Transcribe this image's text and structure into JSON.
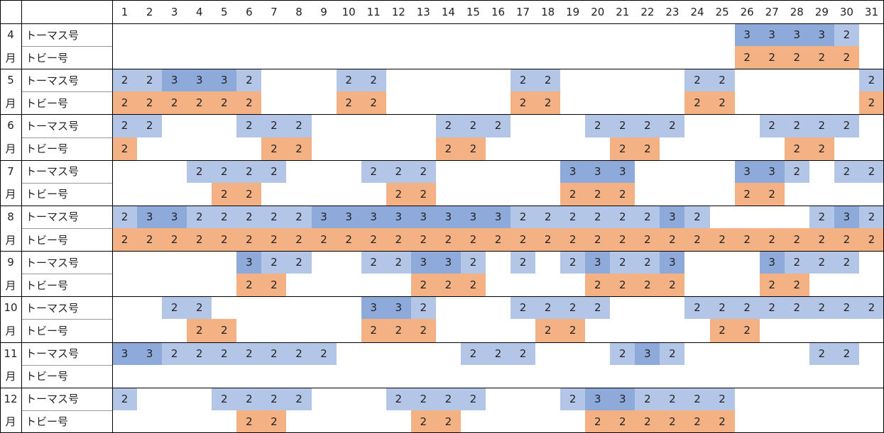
{
  "header": {
    "days": [
      1,
      2,
      3,
      4,
      5,
      6,
      7,
      8,
      9,
      10,
      11,
      12,
      13,
      14,
      15,
      16,
      17,
      18,
      19,
      20,
      21,
      22,
      23,
      24,
      25,
      26,
      27,
      28,
      29,
      30,
      31
    ]
  },
  "months": [
    {
      "number": "4",
      "unit": "月",
      "rows": [
        {
          "name": "トーマス号",
          "cells": [
            null,
            null,
            null,
            null,
            null,
            null,
            null,
            null,
            null,
            null,
            null,
            null,
            null,
            null,
            null,
            null,
            null,
            null,
            null,
            null,
            null,
            null,
            null,
            null,
            null,
            3,
            3,
            3,
            3,
            2,
            null
          ]
        },
        {
          "name": "トビー号",
          "cells": [
            null,
            null,
            null,
            null,
            null,
            null,
            null,
            null,
            null,
            null,
            null,
            null,
            null,
            null,
            null,
            null,
            null,
            null,
            null,
            null,
            null,
            null,
            null,
            null,
            null,
            2,
            2,
            2,
            2,
            2,
            null
          ]
        }
      ]
    },
    {
      "number": "5",
      "unit": "月",
      "rows": [
        {
          "name": "トーマス号",
          "cells": [
            2,
            2,
            3,
            3,
            3,
            2,
            null,
            null,
            null,
            2,
            2,
            null,
            null,
            null,
            null,
            null,
            2,
            2,
            null,
            null,
            null,
            null,
            null,
            2,
            2,
            null,
            null,
            null,
            null,
            null,
            2
          ]
        },
        {
          "name": "トビー号",
          "cells": [
            2,
            2,
            2,
            2,
            2,
            2,
            null,
            null,
            null,
            2,
            2,
            null,
            null,
            null,
            null,
            null,
            2,
            2,
            null,
            null,
            null,
            null,
            null,
            2,
            2,
            null,
            null,
            null,
            null,
            null,
            2
          ]
        }
      ]
    },
    {
      "number": "6",
      "unit": "月",
      "rows": [
        {
          "name": "トーマス号",
          "cells": [
            2,
            2,
            null,
            null,
            null,
            2,
            2,
            2,
            null,
            null,
            null,
            null,
            null,
            2,
            2,
            2,
            null,
            null,
            null,
            2,
            2,
            2,
            2,
            null,
            null,
            null,
            2,
            2,
            2,
            2,
            null
          ]
        },
        {
          "name": "トビー号",
          "cells": [
            2,
            null,
            null,
            null,
            null,
            null,
            2,
            2,
            null,
            null,
            null,
            null,
            null,
            2,
            2,
            null,
            null,
            null,
            null,
            null,
            2,
            2,
            null,
            null,
            null,
            null,
            null,
            2,
            2,
            null,
            null
          ]
        }
      ]
    },
    {
      "number": "7",
      "unit": "月",
      "rows": [
        {
          "name": "トーマス号",
          "cells": [
            null,
            null,
            null,
            2,
            2,
            2,
            2,
            null,
            null,
            null,
            2,
            2,
            2,
            null,
            null,
            null,
            null,
            null,
            3,
            3,
            3,
            null,
            null,
            null,
            null,
            3,
            3,
            2,
            null,
            2,
            2
          ]
        },
        {
          "name": "トビー号",
          "cells": [
            null,
            null,
            null,
            null,
            2,
            2,
            null,
            null,
            null,
            null,
            null,
            2,
            2,
            null,
            null,
            null,
            null,
            null,
            2,
            2,
            2,
            null,
            null,
            null,
            null,
            2,
            2,
            null,
            null,
            null,
            null
          ]
        }
      ]
    },
    {
      "number": "8",
      "unit": "月",
      "rows": [
        {
          "name": "トーマス号",
          "cells": [
            2,
            3,
            3,
            2,
            2,
            2,
            2,
            2,
            3,
            3,
            3,
            3,
            3,
            3,
            3,
            3,
            2,
            2,
            2,
            2,
            2,
            2,
            3,
            2,
            null,
            null,
            null,
            null,
            2,
            3,
            2
          ]
        },
        {
          "name": "トビー号",
          "cells": [
            2,
            2,
            2,
            2,
            2,
            2,
            2,
            2,
            2,
            2,
            2,
            2,
            2,
            2,
            2,
            2,
            2,
            2,
            2,
            2,
            2,
            2,
            2,
            2,
            2,
            2,
            2,
            2,
            2,
            2,
            2
          ]
        }
      ]
    },
    {
      "number": "9",
      "unit": "月",
      "rows": [
        {
          "name": "トーマス号",
          "cells": [
            null,
            null,
            null,
            null,
            null,
            3,
            2,
            2,
            null,
            null,
            2,
            2,
            3,
            3,
            2,
            null,
            2,
            null,
            2,
            3,
            2,
            2,
            3,
            null,
            null,
            null,
            3,
            2,
            2,
            2,
            null
          ]
        },
        {
          "name": "トビー号",
          "cells": [
            null,
            null,
            null,
            null,
            null,
            2,
            2,
            null,
            null,
            null,
            null,
            null,
            2,
            2,
            2,
            null,
            null,
            null,
            null,
            2,
            2,
            2,
            2,
            null,
            null,
            null,
            2,
            2,
            null,
            null,
            null
          ]
        }
      ]
    },
    {
      "number": "10",
      "unit": "月",
      "rows": [
        {
          "name": "トーマス号",
          "cells": [
            null,
            null,
            2,
            2,
            null,
            null,
            null,
            null,
            null,
            null,
            3,
            3,
            2,
            null,
            null,
            null,
            2,
            2,
            2,
            2,
            null,
            null,
            null,
            2,
            2,
            2,
            2,
            2,
            2,
            2,
            2
          ]
        },
        {
          "name": "トビー号",
          "cells": [
            null,
            null,
            null,
            2,
            2,
            null,
            null,
            null,
            null,
            null,
            2,
            2,
            2,
            null,
            null,
            null,
            null,
            2,
            2,
            null,
            null,
            null,
            null,
            null,
            2,
            2,
            null,
            null,
            null,
            null,
            null
          ]
        }
      ]
    },
    {
      "number": "11",
      "unit": "月",
      "rows": [
        {
          "name": "トーマス号",
          "cells": [
            3,
            3,
            2,
            2,
            2,
            2,
            2,
            2,
            2,
            null,
            null,
            null,
            null,
            null,
            2,
            2,
            2,
            null,
            null,
            null,
            2,
            3,
            2,
            null,
            null,
            null,
            null,
            null,
            2,
            2,
            null
          ]
        },
        {
          "name": "トビー号",
          "cells": [
            null,
            null,
            null,
            null,
            null,
            null,
            null,
            null,
            null,
            null,
            null,
            null,
            null,
            null,
            null,
            null,
            null,
            null,
            null,
            null,
            null,
            null,
            null,
            null,
            null,
            null,
            null,
            null,
            null,
            null,
            null
          ]
        }
      ]
    },
    {
      "number": "12",
      "unit": "月",
      "rows": [
        {
          "name": "トーマス号",
          "cells": [
            2,
            null,
            null,
            null,
            2,
            2,
            2,
            2,
            null,
            null,
            null,
            2,
            2,
            2,
            2,
            null,
            null,
            null,
            2,
            3,
            3,
            2,
            2,
            2,
            2,
            null,
            null,
            null,
            null,
            null,
            null
          ]
        },
        {
          "name": "トビー号",
          "cells": [
            null,
            null,
            null,
            null,
            null,
            2,
            2,
            null,
            null,
            null,
            null,
            null,
            2,
            2,
            null,
            null,
            null,
            null,
            null,
            2,
            2,
            2,
            2,
            2,
            2,
            null,
            null,
            null,
            null,
            null,
            null
          ]
        }
      ]
    }
  ]
}
